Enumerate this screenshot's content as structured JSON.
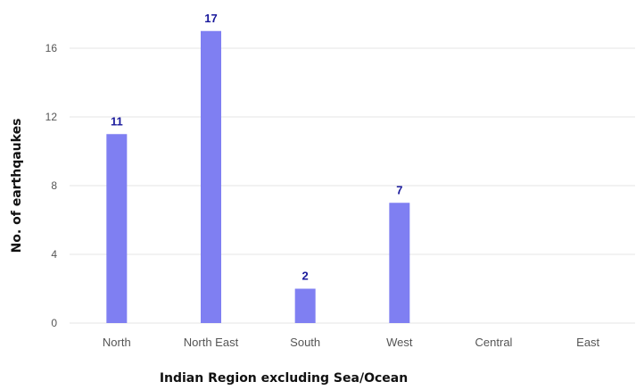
{
  "chart_data": {
    "type": "bar",
    "categories": [
      "North",
      "North East",
      "South",
      "West",
      "Central",
      "East"
    ],
    "values": [
      11,
      17,
      2,
      7,
      0,
      0
    ],
    "data_labels": [
      "11",
      "17",
      "2",
      "7",
      "",
      ""
    ],
    "xlabel": "Indian Region excluding Sea/Ocean",
    "ylabel": "No. of earthqaukes",
    "ylim": [
      0,
      17
    ],
    "yticks": [
      0,
      4,
      8,
      12,
      16
    ],
    "grid": true,
    "colors": {
      "bar": "#7f7ff2",
      "data_label": "#1a1a9c",
      "grid": "#e6e6e6"
    }
  }
}
